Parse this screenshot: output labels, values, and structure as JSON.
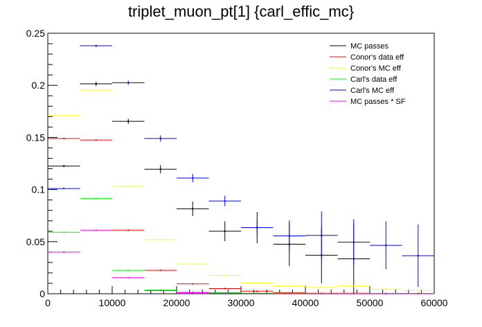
{
  "chart_data": {
    "type": "scatter",
    "title": "triplet_muon_pt[1]  {carl_effic_mc}",
    "xlabel": "",
    "ylabel": "",
    "xlim": [
      0,
      60000
    ],
    "ylim": [
      0,
      0.25
    ],
    "x_ticks": [
      "0",
      "10000",
      "20000",
      "30000",
      "40000",
      "50000",
      "60000"
    ],
    "y_ticks": [
      "0",
      "0.05",
      "0.1",
      "0.15",
      "0.2",
      "0.25"
    ],
    "grid": false,
    "legend_position": "top-right",
    "bin_edges": [
      0,
      5000,
      10000,
      15000,
      20000,
      25000,
      30000,
      35000,
      40000,
      45000,
      50000,
      55000,
      60000
    ],
    "series": [
      {
        "name": "MC passes",
        "color": "#000000",
        "values": [
          0.1225,
          0.2015,
          0.1655,
          0.1195,
          0.0815,
          0.06,
          0.0635,
          0.0475,
          0.037,
          0.0335,
          null,
          null
        ],
        "errors": [
          0.001,
          0.002,
          0.0025,
          0.004,
          0.007,
          0.0095,
          0.015,
          0.021,
          0.027,
          0.033,
          null,
          null
        ]
      },
      {
        "name": "Conor's data eff",
        "color": "#ff0000",
        "values": [
          0.149,
          0.1475,
          0.061,
          0.0225,
          0.0095,
          0.005,
          0.0025,
          0.001,
          0.0005,
          0.0005,
          0.0003,
          0.0003
        ],
        "errors": [
          0,
          0,
          0,
          0,
          0,
          0,
          0,
          0,
          0,
          0,
          0,
          0
        ]
      },
      {
        "name": "Conor's MC eff",
        "color": "#ffff00",
        "values": [
          0.171,
          0.1955,
          0.103,
          0.052,
          0.0285,
          0.0175,
          0.0105,
          0.0075,
          0.006,
          0.0075,
          0.0045,
          0.003
        ],
        "errors": [
          0,
          0,
          0,
          0,
          0,
          0,
          0,
          0,
          0,
          0,
          0,
          0
        ]
      },
      {
        "name": "Carl's data eff",
        "color": "#00ff00",
        "values": [
          0.059,
          0.0915,
          0.0225,
          0.0035,
          0.0015,
          0.001,
          0.0005,
          0.0005,
          0.0003,
          0.0003,
          0.0002,
          0.0002
        ],
        "errors": [
          0,
          0,
          0,
          0,
          0,
          0,
          0,
          0,
          0,
          0,
          0,
          0
        ]
      },
      {
        "name": "Carl's MC eff",
        "color": "#0000ff",
        "values": [
          0.101,
          0.238,
          0.2025,
          0.149,
          0.111,
          0.089,
          0.0635,
          0.0555,
          0.056,
          0.0495,
          0.0465,
          0.0365
        ],
        "errors": [
          0.0005,
          0.001,
          0.002,
          0.003,
          0.004,
          0.005,
          0.006,
          0.015,
          0.023,
          0.022,
          0.023,
          0.03
        ]
      },
      {
        "name": "MC passes * SF",
        "color": "#ff00ff",
        "values": [
          0.04,
          0.061,
          0.0155,
          0.003,
          0.001,
          0.0005,
          0.0003,
          0.0002,
          0.0002,
          0.0001,
          0.0001,
          0.0001
        ],
        "errors": [
          0,
          0,
          0,
          0,
          0,
          0,
          0,
          0,
          0,
          0,
          0,
          0
        ]
      }
    ]
  }
}
